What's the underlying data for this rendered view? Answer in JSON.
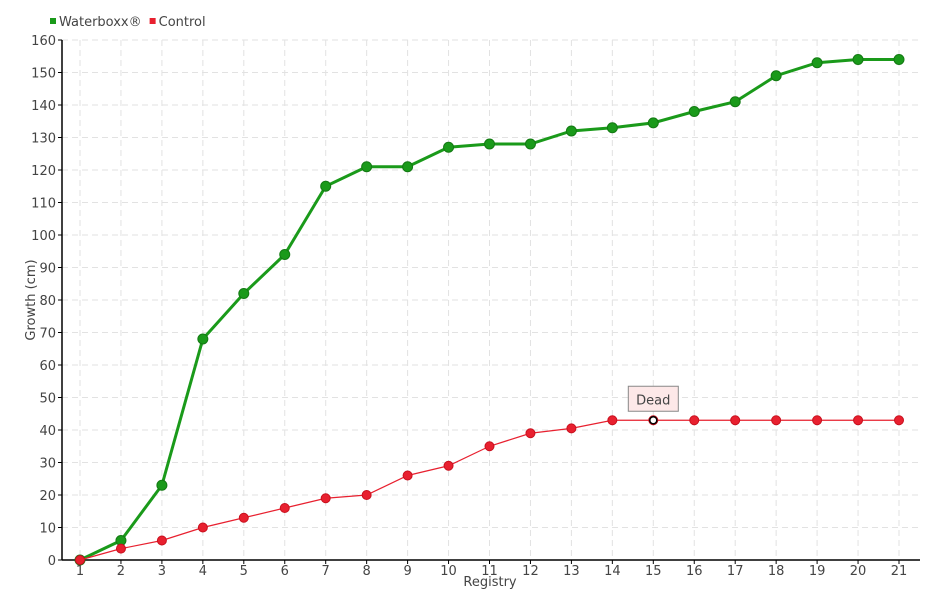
{
  "chart_data": {
    "type": "line",
    "title": "",
    "xlabel": "Registry",
    "ylabel": "Growth (cm)",
    "x": [
      1,
      2,
      3,
      4,
      5,
      6,
      7,
      8,
      9,
      10,
      11,
      12,
      13,
      14,
      15,
      16,
      17,
      18,
      19,
      20,
      21
    ],
    "ylim": [
      0,
      160
    ],
    "yticks": [
      0,
      10,
      20,
      30,
      40,
      50,
      60,
      70,
      80,
      90,
      100,
      110,
      120,
      130,
      140,
      150,
      160
    ],
    "grid": true,
    "legend_placement": "top-left",
    "series": [
      {
        "name": "Waterboxx®",
        "color": "#1a9a1a",
        "values": [
          0,
          6,
          23,
          68,
          82,
          94,
          115,
          121,
          121,
          127,
          128,
          128,
          132,
          133,
          134.5,
          138,
          141,
          149,
          153,
          154,
          154
        ]
      },
      {
        "name": "Control",
        "color": "#e8202f",
        "values": [
          0,
          3.5,
          6,
          10,
          13,
          16,
          19,
          20,
          26,
          29,
          35,
          39,
          40.5,
          43,
          43,
          43,
          43,
          43,
          43,
          43,
          43
        ]
      }
    ],
    "annotations": [
      {
        "series": "Control",
        "x": 15,
        "text": "Dead"
      }
    ]
  }
}
